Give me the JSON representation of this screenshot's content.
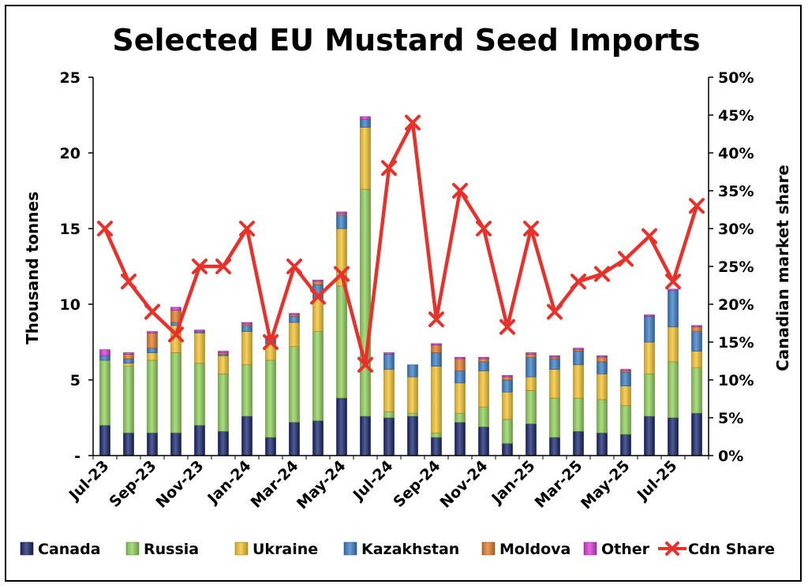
{
  "chart_data": {
    "type": "bar",
    "stacked": true,
    "title": "Selected EU Mustard Seed Imports",
    "ylabel": "Thousand tonnes",
    "y2label": "Canadian market share",
    "ylim": [
      0,
      25
    ],
    "y2lim": [
      0,
      50
    ],
    "yticks": [
      "-",
      "5",
      "10",
      "15",
      "20",
      "25"
    ],
    "y2ticks": [
      "0%",
      "5%",
      "10%",
      "15%",
      "20%",
      "25%",
      "30%",
      "35%",
      "40%",
      "45%",
      "50%"
    ],
    "grid": false,
    "legend_position": "bottom",
    "categories": [
      "Jul-23",
      "Aug-23",
      "Sep-23",
      "Oct-23",
      "Nov-23",
      "Dec-23",
      "Jan-24",
      "Feb-24",
      "Mar-24",
      "Apr-24",
      "May-24",
      "Jun-24",
      "Jul-24",
      "Aug-24",
      "Sep-24",
      "Oct-24",
      "Nov-24",
      "Dec-24",
      "Jan-25",
      "Feb-25",
      "Mar-25",
      "Apr-25",
      "May-25",
      "Jun-25",
      "Jul-25",
      "Aug-25"
    ],
    "tick_labels": [
      "Jul-23",
      "Sep-23",
      "Nov-23",
      "Jan-24",
      "Mar-24",
      "May-24",
      "Jul-24",
      "Sep-24",
      "Nov-24",
      "Jan-25",
      "Mar-25",
      "May-25",
      "Jul-25"
    ],
    "series": [
      {
        "name": "Canada",
        "color": "#17256b",
        "values": [
          2.0,
          1.5,
          1.5,
          1.5,
          2.0,
          1.6,
          2.6,
          1.2,
          2.2,
          2.3,
          3.8,
          2.6,
          2.5,
          2.6,
          1.2,
          2.2,
          1.9,
          0.8,
          2.1,
          1.2,
          1.6,
          1.5,
          1.4,
          2.6,
          2.5,
          2.8
        ]
      },
      {
        "name": "Russia",
        "color": "#8fcf5a",
        "values": [
          4.3,
          4.4,
          4.8,
          5.3,
          4.1,
          3.8,
          3.4,
          5.1,
          5.0,
          5.9,
          7.4,
          15.0,
          0.4,
          0.2,
          0.3,
          0.6,
          1.3,
          1.6,
          2.2,
          2.6,
          2.2,
          2.2,
          1.9,
          2.8,
          3.7,
          3.0
        ]
      },
      {
        "name": "Ukraine",
        "color": "#f2c230",
        "values": [
          0.0,
          0.2,
          0.5,
          1.8,
          2.0,
          1.2,
          2.2,
          1.1,
          1.6,
          2.2,
          3.8,
          4.1,
          2.8,
          2.4,
          4.4,
          2.0,
          2.4,
          1.8,
          0.9,
          1.9,
          2.2,
          1.7,
          1.3,
          2.1,
          2.3,
          1.1
        ]
      },
      {
        "name": "Kazakhstan",
        "color": "#3a7cc4",
        "values": [
          0.3,
          0.3,
          0.3,
          0.2,
          0.1,
          0.1,
          0.4,
          0.4,
          0.4,
          0.9,
          0.9,
          0.5,
          1.0,
          0.8,
          0.9,
          0.8,
          0.6,
          0.8,
          1.3,
          0.7,
          0.9,
          0.8,
          0.9,
          1.7,
          2.4,
          1.3
        ]
      },
      {
        "name": "Moldova",
        "color": "#e07a2a",
        "values": [
          0.0,
          0.3,
          1.0,
          0.8,
          0.0,
          0.1,
          0.1,
          0.0,
          0.1,
          0.2,
          0.1,
          0.0,
          0.0,
          0.0,
          0.5,
          0.8,
          0.2,
          0.2,
          0.2,
          0.1,
          0.1,
          0.3,
          0.1,
          0.0,
          0.0,
          0.3
        ]
      },
      {
        "name": "Other",
        "color": "#d63ad6",
        "values": [
          0.4,
          0.1,
          0.1,
          0.2,
          0.1,
          0.1,
          0.1,
          0.1,
          0.1,
          0.1,
          0.1,
          0.2,
          0.1,
          0.0,
          0.1,
          0.1,
          0.1,
          0.1,
          0.1,
          0.1,
          0.1,
          0.1,
          0.1,
          0.1,
          0.1,
          0.1
        ]
      }
    ],
    "share_series": {
      "name": "Cdn Share",
      "color": "#e8312a",
      "values": [
        30,
        23,
        19,
        16,
        25,
        25,
        30,
        15,
        25,
        21,
        24,
        12,
        38,
        44,
        18,
        35,
        30,
        17,
        30,
        19,
        23,
        24,
        26,
        29,
        23,
        33
      ]
    }
  }
}
